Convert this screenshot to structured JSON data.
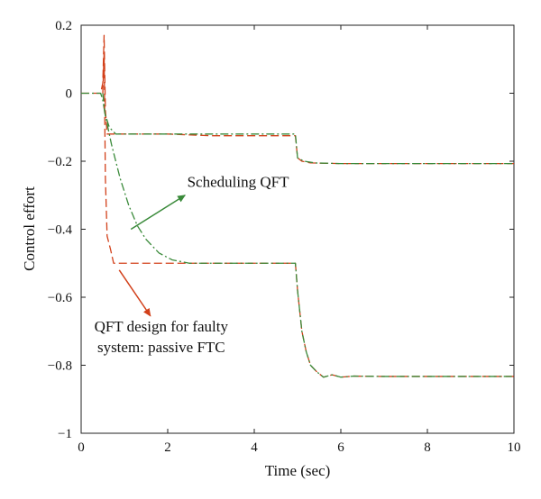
{
  "chart_data": {
    "type": "line",
    "title": "",
    "xlabel": "Time (sec)",
    "ylabel": "Control effort",
    "xlim": [
      0,
      10
    ],
    "ylim": [
      -1,
      0.2
    ],
    "xticks": [
      0,
      2,
      4,
      6,
      8,
      10
    ],
    "xtick_labels": [
      "0",
      "2",
      "4",
      "6",
      "8",
      "10"
    ],
    "yticks": [
      -1,
      -0.8,
      -0.6,
      -0.4,
      -0.2,
      0,
      0.2
    ],
    "ytick_labels": [
      "−1",
      "−0.8",
      "−0.6",
      "−0.4",
      "−0.2",
      "0",
      "0.2"
    ],
    "grid": false,
    "legend": "none",
    "series": [
      {
        "color": "#d2401a",
        "dash": "dashed",
        "points": [
          [
            0,
            0
          ],
          [
            0.45,
            0
          ],
          [
            0.5,
            0.03
          ],
          [
            0.53,
            0.17
          ],
          [
            0.56,
            -0.05
          ],
          [
            0.6,
            -0.12
          ],
          [
            1.0,
            -0.12
          ],
          [
            2.0,
            -0.12
          ],
          [
            3.0,
            -0.125
          ],
          [
            4.0,
            -0.125
          ],
          [
            4.95,
            -0.125
          ],
          [
            5.0,
            -0.19
          ],
          [
            5.1,
            -0.2
          ],
          [
            5.3,
            -0.205
          ],
          [
            6,
            -0.207
          ],
          [
            10,
            -0.207
          ]
        ]
      },
      {
        "color": "#3a8a3a",
        "dash": "dashdot",
        "points": [
          [
            0,
            0
          ],
          [
            0.45,
            0
          ],
          [
            0.5,
            -0.02
          ],
          [
            0.55,
            -0.06
          ],
          [
            0.65,
            -0.1
          ],
          [
            0.8,
            -0.12
          ],
          [
            1.2,
            -0.12
          ],
          [
            2.0,
            -0.12
          ],
          [
            3.0,
            -0.12
          ],
          [
            4.95,
            -0.12
          ],
          [
            5.0,
            -0.19
          ],
          [
            5.15,
            -0.2
          ],
          [
            5.4,
            -0.205
          ],
          [
            6,
            -0.207
          ],
          [
            10,
            -0.207
          ]
        ]
      },
      {
        "color": "#d2401a",
        "dash": "dashed",
        "points": [
          [
            0.5,
            0
          ],
          [
            0.53,
            0.12
          ],
          [
            0.56,
            -0.25
          ],
          [
            0.6,
            -0.42
          ],
          [
            0.68,
            -0.46
          ],
          [
            0.75,
            -0.5
          ],
          [
            1.0,
            -0.5
          ],
          [
            2.0,
            -0.5
          ],
          [
            3.0,
            -0.5
          ],
          [
            4.0,
            -0.5
          ],
          [
            4.95,
            -0.5
          ],
          [
            5.0,
            -0.58
          ],
          [
            5.1,
            -0.7
          ],
          [
            5.2,
            -0.76
          ],
          [
            5.3,
            -0.8
          ],
          [
            5.45,
            -0.82
          ],
          [
            5.6,
            -0.835
          ],
          [
            5.8,
            -0.828
          ],
          [
            6.0,
            -0.835
          ],
          [
            6.3,
            -0.832
          ],
          [
            7,
            -0.833
          ],
          [
            10,
            -0.833
          ]
        ]
      },
      {
        "color": "#3a8a3a",
        "dash": "dashdot",
        "points": [
          [
            0.5,
            0
          ],
          [
            0.55,
            -0.06
          ],
          [
            0.7,
            -0.15
          ],
          [
            0.9,
            -0.25
          ],
          [
            1.1,
            -0.33
          ],
          [
            1.3,
            -0.39
          ],
          [
            1.5,
            -0.43
          ],
          [
            1.8,
            -0.47
          ],
          [
            2.1,
            -0.49
          ],
          [
            2.5,
            -0.5
          ],
          [
            3.0,
            -0.5
          ],
          [
            4.95,
            -0.5
          ],
          [
            5.0,
            -0.58
          ],
          [
            5.1,
            -0.7
          ],
          [
            5.2,
            -0.76
          ],
          [
            5.3,
            -0.8
          ],
          [
            5.45,
            -0.82
          ],
          [
            5.6,
            -0.835
          ],
          [
            5.8,
            -0.828
          ],
          [
            6.0,
            -0.835
          ],
          [
            6.3,
            -0.832
          ],
          [
            7,
            -0.833
          ],
          [
            10,
            -0.833
          ]
        ]
      }
    ],
    "annotations": [
      {
        "name": "annotation-scheduling-qft",
        "lines": [
          "Scheduling QFT"
        ],
        "text_at": [
          2.45,
          -0.275
        ],
        "anchor": "start",
        "arrow_from": [
          1.15,
          -0.4
        ],
        "arrow_to": [
          2.4,
          -0.3
        ],
        "color": "#3a8a3a"
      },
      {
        "name": "annotation-qft-passive-ftc",
        "lines": [
          "QFT design for faulty",
          "system: passive FTC"
        ],
        "text_at": [
          1.85,
          -0.7
        ],
        "anchor": "middle",
        "arrow_from": [
          0.88,
          -0.52
        ],
        "arrow_to": [
          1.6,
          -0.655
        ],
        "color": "#d2401a"
      }
    ]
  }
}
